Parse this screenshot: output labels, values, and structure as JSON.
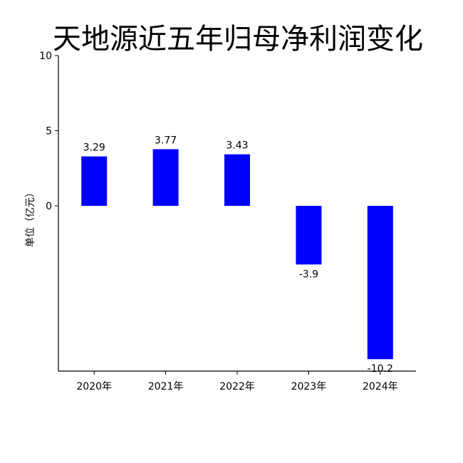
{
  "chart_data": {
    "type": "bar",
    "title": "天地源近五年归母净利润变化",
    "xlabel": "",
    "ylabel": "单位（亿元）",
    "categories": [
      "2020年",
      "2021年",
      "2022年",
      "2023年",
      "2024年"
    ],
    "values": [
      3.29,
      3.77,
      3.43,
      -3.9,
      -10.2
    ],
    "data_labels": [
      "3.29",
      "3.77",
      "3.43",
      "-3.9",
      "-10.2"
    ],
    "yticks": [
      0,
      5,
      10
    ],
    "ytick_labels": [
      "0",
      "5",
      "10"
    ],
    "ylim": [
      -11,
      10
    ],
    "bar_color": "#0000ff",
    "grid": false,
    "legend": "none"
  }
}
